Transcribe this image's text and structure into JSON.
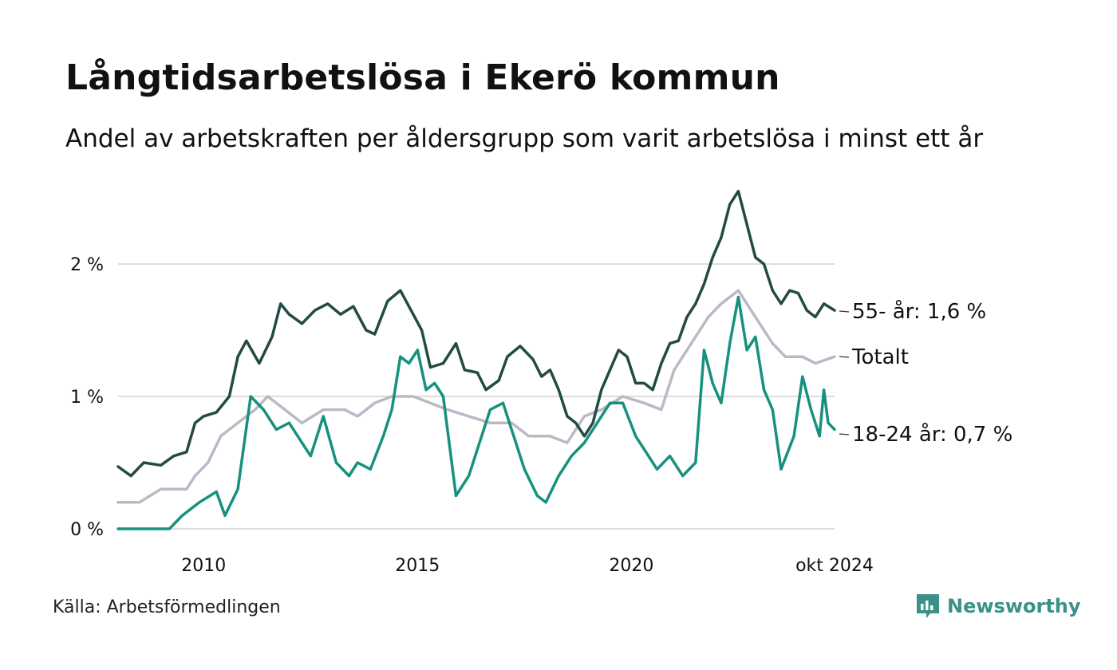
{
  "title": "Långtidsarbetslösa i Ekerö kommun",
  "subtitle": "Andel av arbetskraften per åldersgrupp som varit arbetslösa i minst ett år",
  "source": "Källa: Arbetsförmedlingen",
  "brand": "Newsworthy",
  "colors": {
    "series_55": "#234a44",
    "series_total": "#bcb8c6",
    "series_18_24": "#17917f",
    "grid": "#dddddd",
    "brand": "#3a9187"
  },
  "chart_data": {
    "type": "line",
    "title": "Långtidsarbetslösa i Ekerö kommun",
    "xlabel": "",
    "ylabel": "",
    "x_tick_labels": [
      {
        "x": 2010,
        "label": "2010"
      },
      {
        "x": 2015,
        "label": "2015"
      },
      {
        "x": 2020,
        "label": "2020"
      },
      {
        "x": 2024.75,
        "label": "okt 2024"
      }
    ],
    "y_tick_labels": [
      {
        "y": 0,
        "label": "0 %"
      },
      {
        "y": 1,
        "label": "1 %"
      },
      {
        "y": 2,
        "label": "2 %"
      }
    ],
    "xlim": [
      2008.0,
      2024.75
    ],
    "ylim": [
      0,
      2.7
    ],
    "series": [
      {
        "name": "55- år",
        "end_label": "55- år: 1,6 %",
        "color": "#234a44",
        "points": [
          [
            2008.0,
            0.47
          ],
          [
            2008.3,
            0.4
          ],
          [
            2008.6,
            0.5
          ],
          [
            2009.0,
            0.48
          ],
          [
            2009.3,
            0.55
          ],
          [
            2009.6,
            0.58
          ],
          [
            2009.8,
            0.8
          ],
          [
            2010.0,
            0.85
          ],
          [
            2010.3,
            0.88
          ],
          [
            2010.6,
            1.0
          ],
          [
            2010.8,
            1.3
          ],
          [
            2011.0,
            1.42
          ],
          [
            2011.3,
            1.25
          ],
          [
            2011.6,
            1.45
          ],
          [
            2011.8,
            1.7
          ],
          [
            2012.0,
            1.62
          ],
          [
            2012.3,
            1.55
          ],
          [
            2012.6,
            1.65
          ],
          [
            2012.9,
            1.7
          ],
          [
            2013.2,
            1.62
          ],
          [
            2013.5,
            1.68
          ],
          [
            2013.8,
            1.5
          ],
          [
            2014.0,
            1.47
          ],
          [
            2014.3,
            1.72
          ],
          [
            2014.6,
            1.8
          ],
          [
            2014.9,
            1.62
          ],
          [
            2015.1,
            1.5
          ],
          [
            2015.3,
            1.22
          ],
          [
            2015.6,
            1.25
          ],
          [
            2015.9,
            1.4
          ],
          [
            2016.1,
            1.2
          ],
          [
            2016.4,
            1.18
          ],
          [
            2016.6,
            1.05
          ],
          [
            2016.9,
            1.12
          ],
          [
            2017.1,
            1.3
          ],
          [
            2017.4,
            1.38
          ],
          [
            2017.7,
            1.28
          ],
          [
            2017.9,
            1.15
          ],
          [
            2018.1,
            1.2
          ],
          [
            2018.3,
            1.05
          ],
          [
            2018.5,
            0.85
          ],
          [
            2018.7,
            0.8
          ],
          [
            2018.9,
            0.7
          ],
          [
            2019.1,
            0.8
          ],
          [
            2019.3,
            1.05
          ],
          [
            2019.5,
            1.2
          ],
          [
            2019.7,
            1.35
          ],
          [
            2019.9,
            1.3
          ],
          [
            2020.1,
            1.1
          ],
          [
            2020.3,
            1.1
          ],
          [
            2020.5,
            1.05
          ],
          [
            2020.7,
            1.25
          ],
          [
            2020.9,
            1.4
          ],
          [
            2021.1,
            1.42
          ],
          [
            2021.3,
            1.6
          ],
          [
            2021.5,
            1.7
          ],
          [
            2021.7,
            1.85
          ],
          [
            2021.9,
            2.05
          ],
          [
            2022.1,
            2.2
          ],
          [
            2022.3,
            2.45
          ],
          [
            2022.5,
            2.55
          ],
          [
            2022.7,
            2.3
          ],
          [
            2022.9,
            2.05
          ],
          [
            2023.1,
            2.0
          ],
          [
            2023.3,
            1.8
          ],
          [
            2023.5,
            1.7
          ],
          [
            2023.7,
            1.8
          ],
          [
            2023.9,
            1.78
          ],
          [
            2024.1,
            1.65
          ],
          [
            2024.3,
            1.6
          ],
          [
            2024.5,
            1.7
          ],
          [
            2024.75,
            1.65
          ]
        ]
      },
      {
        "name": "Totalt",
        "end_label": "Totalt",
        "color": "#bcb8c6",
        "points": [
          [
            2008.0,
            0.2
          ],
          [
            2008.5,
            0.2
          ],
          [
            2009.0,
            0.3
          ],
          [
            2009.6,
            0.3
          ],
          [
            2009.8,
            0.4
          ],
          [
            2010.1,
            0.5
          ],
          [
            2010.4,
            0.7
          ],
          [
            2010.8,
            0.8
          ],
          [
            2011.2,
            0.9
          ],
          [
            2011.5,
            1.0
          ],
          [
            2011.9,
            0.9
          ],
          [
            2012.3,
            0.8
          ],
          [
            2012.8,
            0.9
          ],
          [
            2013.3,
            0.9
          ],
          [
            2013.6,
            0.85
          ],
          [
            2014.0,
            0.95
          ],
          [
            2014.4,
            1.0
          ],
          [
            2014.9,
            1.0
          ],
          [
            2015.3,
            0.95
          ],
          [
            2015.7,
            0.9
          ],
          [
            2016.2,
            0.85
          ],
          [
            2016.7,
            0.8
          ],
          [
            2017.2,
            0.8
          ],
          [
            2017.6,
            0.7
          ],
          [
            2018.1,
            0.7
          ],
          [
            2018.5,
            0.65
          ],
          [
            2018.9,
            0.85
          ],
          [
            2019.3,
            0.9
          ],
          [
            2019.8,
            1.0
          ],
          [
            2020.3,
            0.95
          ],
          [
            2020.7,
            0.9
          ],
          [
            2021.0,
            1.2
          ],
          [
            2021.4,
            1.4
          ],
          [
            2021.8,
            1.6
          ],
          [
            2022.1,
            1.7
          ],
          [
            2022.5,
            1.8
          ],
          [
            2022.9,
            1.6
          ],
          [
            2023.3,
            1.4
          ],
          [
            2023.6,
            1.3
          ],
          [
            2024.0,
            1.3
          ],
          [
            2024.3,
            1.25
          ],
          [
            2024.75,
            1.3
          ]
        ]
      },
      {
        "name": "18-24 år",
        "end_label": "18-24 år: 0,7 %",
        "color": "#17917f",
        "points": [
          [
            2008.0,
            0.0
          ],
          [
            2009.2,
            0.0
          ],
          [
            2009.5,
            0.1
          ],
          [
            2009.9,
            0.2
          ],
          [
            2010.3,
            0.28
          ],
          [
            2010.5,
            0.1
          ],
          [
            2010.8,
            0.3
          ],
          [
            2011.1,
            1.0
          ],
          [
            2011.4,
            0.9
          ],
          [
            2011.7,
            0.75
          ],
          [
            2012.0,
            0.8
          ],
          [
            2012.3,
            0.65
          ],
          [
            2012.5,
            0.55
          ],
          [
            2012.8,
            0.85
          ],
          [
            2013.1,
            0.5
          ],
          [
            2013.4,
            0.4
          ],
          [
            2013.6,
            0.5
          ],
          [
            2013.9,
            0.45
          ],
          [
            2014.2,
            0.7
          ],
          [
            2014.4,
            0.9
          ],
          [
            2014.6,
            1.3
          ],
          [
            2014.8,
            1.25
          ],
          [
            2015.0,
            1.35
          ],
          [
            2015.2,
            1.05
          ],
          [
            2015.4,
            1.1
          ],
          [
            2015.6,
            1.0
          ],
          [
            2015.9,
            0.25
          ],
          [
            2016.2,
            0.4
          ],
          [
            2016.4,
            0.6
          ],
          [
            2016.7,
            0.9
          ],
          [
            2017.0,
            0.95
          ],
          [
            2017.2,
            0.75
          ],
          [
            2017.5,
            0.45
          ],
          [
            2017.8,
            0.25
          ],
          [
            2018.0,
            0.2
          ],
          [
            2018.3,
            0.4
          ],
          [
            2018.6,
            0.55
          ],
          [
            2018.9,
            0.65
          ],
          [
            2019.2,
            0.8
          ],
          [
            2019.5,
            0.95
          ],
          [
            2019.8,
            0.95
          ],
          [
            2020.1,
            0.7
          ],
          [
            2020.4,
            0.55
          ],
          [
            2020.6,
            0.45
          ],
          [
            2020.9,
            0.55
          ],
          [
            2021.2,
            0.4
          ],
          [
            2021.5,
            0.5
          ],
          [
            2021.7,
            1.35
          ],
          [
            2021.9,
            1.1
          ],
          [
            2022.1,
            0.95
          ],
          [
            2022.3,
            1.4
          ],
          [
            2022.5,
            1.75
          ],
          [
            2022.7,
            1.35
          ],
          [
            2022.9,
            1.45
          ],
          [
            2023.1,
            1.05
          ],
          [
            2023.3,
            0.9
          ],
          [
            2023.5,
            0.45
          ],
          [
            2023.8,
            0.7
          ],
          [
            2024.0,
            1.15
          ],
          [
            2024.2,
            0.9
          ],
          [
            2024.4,
            0.7
          ],
          [
            2024.5,
            1.05
          ],
          [
            2024.6,
            0.8
          ],
          [
            2024.75,
            0.75
          ]
        ]
      }
    ]
  }
}
